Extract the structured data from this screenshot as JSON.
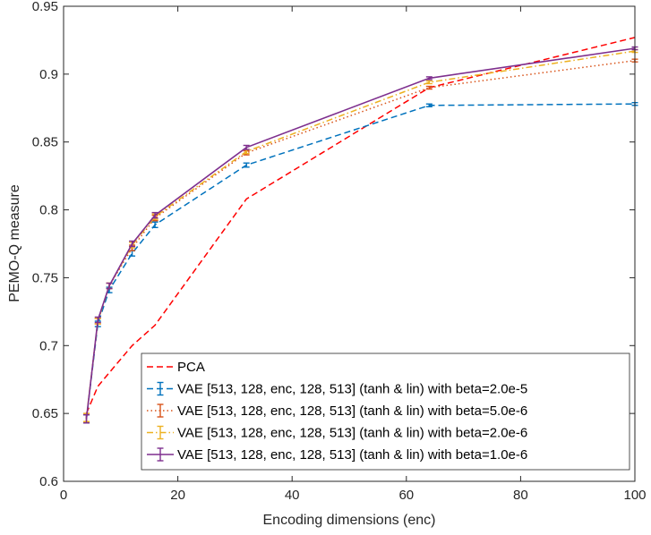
{
  "chart_data": {
    "type": "line",
    "title": "",
    "xlabel": "Encoding dimensions (enc)",
    "ylabel": "PEMO-Q measure",
    "xlim": [
      0,
      100
    ],
    "ylim": [
      0.6,
      0.95
    ],
    "xticks": [
      0,
      20,
      40,
      60,
      80,
      100
    ],
    "yticks": [
      0.6,
      0.65,
      0.7,
      0.75,
      0.8,
      0.85,
      0.9,
      0.95
    ],
    "xtick_labels": [
      "0",
      "20",
      "40",
      "60",
      "80",
      "100"
    ],
    "ytick_labels": [
      "0.6",
      "0.65",
      "0.7",
      "0.75",
      "0.8",
      "0.85",
      "0.9",
      "0.95"
    ],
    "grid": false,
    "legend_position": "bottom-right",
    "series": [
      {
        "name": "PCA",
        "color": "#FF0000",
        "dash": "dashed",
        "errorbars": false,
        "x": [
          4,
          6,
          8,
          12,
          16,
          32,
          64,
          100
        ],
        "y": [
          0.65,
          0.67,
          0.68,
          0.7,
          0.715,
          0.808,
          0.89,
          0.927
        ],
        "err": []
      },
      {
        "name": "VAE [513, 128, enc, 128, 513] (tanh & lin) with beta=2.0e-5",
        "color": "#0072BD",
        "dash": "dashed",
        "errorbars": true,
        "x": [
          4,
          6,
          8,
          12,
          16,
          32,
          64,
          100
        ],
        "y": [
          0.646,
          0.716,
          0.741,
          0.768,
          0.789,
          0.833,
          0.877,
          0.878
        ],
        "err": [
          0.003,
          0.002,
          0.002,
          0.002,
          0.002,
          0.0015,
          0.001,
          0.001
        ]
      },
      {
        "name": "VAE [513, 128, enc, 128, 513] (tanh & lin) with beta=5.0e-6",
        "color": "#D95319",
        "dash": "dotted",
        "errorbars": true,
        "x": [
          4,
          6,
          8,
          12,
          16,
          32,
          64,
          100
        ],
        "y": [
          0.647,
          0.718,
          0.744,
          0.772,
          0.794,
          0.842,
          0.89,
          0.91
        ],
        "err": [
          0.003,
          0.002,
          0.002,
          0.002,
          0.002,
          0.0015,
          0.001,
          0.001
        ]
      },
      {
        "name": "VAE [513, 128, enc, 128, 513] (tanh & lin) with beta=2.0e-6",
        "color": "#EDB120",
        "dash": "dashdot",
        "errorbars": true,
        "x": [
          4,
          6,
          8,
          12,
          16,
          32,
          64,
          100
        ],
        "y": [
          0.647,
          0.718,
          0.744,
          0.774,
          0.795,
          0.843,
          0.894,
          0.917
        ],
        "err": [
          0.003,
          0.002,
          0.002,
          0.002,
          0.002,
          0.0015,
          0.001,
          0.001
        ]
      },
      {
        "name": "VAE [513, 128, enc, 128, 513] (tanh & lin) with beta=1.0e-6",
        "color": "#7E2F8E",
        "dash": "solid",
        "errorbars": true,
        "x": [
          4,
          6,
          8,
          12,
          16,
          32,
          64,
          100
        ],
        "y": [
          0.646,
          0.719,
          0.744,
          0.775,
          0.796,
          0.846,
          0.897,
          0.919
        ],
        "err": [
          0.003,
          0.002,
          0.002,
          0.002,
          0.002,
          0.0015,
          0.001,
          0.001
        ]
      }
    ]
  }
}
